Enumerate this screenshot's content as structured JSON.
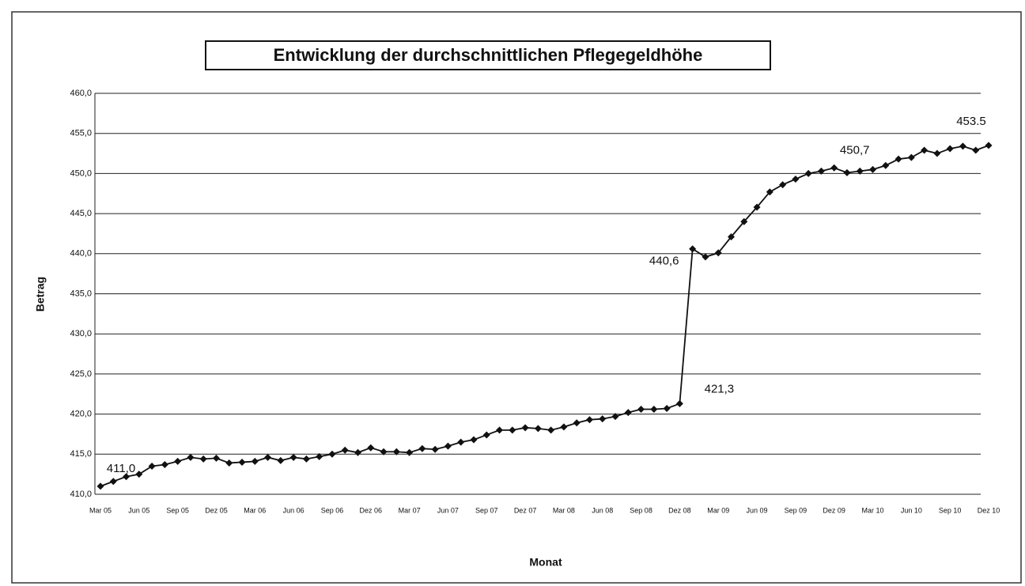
{
  "chart_data": {
    "type": "line",
    "title": "Entwicklung der durchschnittlichen Pflegegeldhöhe",
    "x_label": "Monat",
    "y_label": "Betrag",
    "categories": [
      "Mar 05",
      null,
      null,
      "Jun 05",
      null,
      null,
      "Sep 05",
      null,
      null,
      "Dez 05",
      null,
      null,
      "Mar 06",
      null,
      null,
      "Jun 06",
      null,
      null,
      "Sep 06",
      null,
      null,
      "Dez 06",
      null,
      null,
      "Mar 07",
      null,
      null,
      "Jun 07",
      null,
      null,
      "Sep 07",
      null,
      null,
      "Dez 07",
      null,
      null,
      "Mar 08",
      null,
      null,
      "Jun 08",
      null,
      null,
      "Sep 08",
      null,
      null,
      "Dez 08",
      null,
      null,
      "Mar 09",
      null,
      null,
      "Jun 09",
      null,
      null,
      "Sep 09",
      null,
      null,
      "Dez 09",
      null,
      null,
      "Mar 10",
      null,
      null,
      "Jun 10",
      null,
      null,
      "Sep 10",
      null,
      null,
      "Dez 10"
    ],
    "series": [
      {
        "name": "Betrag",
        "color": "#111111",
        "values": [
          411.0,
          411.6,
          412.2,
          412.5,
          413.5,
          413.7,
          414.1,
          414.6,
          414.4,
          414.5,
          413.9,
          414.0,
          414.1,
          414.6,
          414.2,
          414.6,
          414.4,
          414.7,
          415.0,
          415.5,
          415.2,
          415.8,
          415.3,
          415.3,
          415.2,
          415.7,
          415.6,
          416.0,
          416.5,
          416.8,
          417.4,
          418.0,
          418.0,
          418.3,
          418.2,
          418.0,
          418.4,
          418.9,
          419.3,
          419.4,
          419.7,
          420.2,
          420.6,
          420.6,
          420.7,
          421.3,
          440.6,
          439.6,
          440.1,
          442.1,
          444.0,
          445.8,
          447.7,
          448.6,
          449.3,
          450.0,
          450.3,
          450.7,
          450.1,
          450.3,
          450.5,
          451.0,
          451.8,
          452.0,
          452.9,
          452.5,
          453.1,
          453.4,
          452.9,
          453.5
        ],
        "value_labels": [
          "411,0",
          null,
          null,
          null,
          null,
          null,
          null,
          null,
          null,
          null,
          null,
          null,
          null,
          null,
          null,
          null,
          null,
          null,
          null,
          null,
          null,
          null,
          null,
          null,
          null,
          null,
          null,
          null,
          null,
          null,
          null,
          null,
          null,
          null,
          null,
          null,
          null,
          null,
          null,
          null,
          null,
          null,
          null,
          null,
          null,
          "421,3",
          "440,6",
          null,
          null,
          null,
          null,
          null,
          null,
          null,
          null,
          null,
          null,
          "450,7",
          null,
          null,
          null,
          null,
          null,
          null,
          null,
          null,
          null,
          null,
          null,
          "453.5"
        ]
      }
    ],
    "ylim": [
      410,
      460
    ],
    "yticks": [
      {
        "value": 410,
        "label": "410,0"
      },
      {
        "value": 415,
        "label": "415,0"
      },
      {
        "value": 420,
        "label": "420,0"
      },
      {
        "value": 425,
        "label": "425,0"
      },
      {
        "value": 430,
        "label": "430,0"
      },
      {
        "value": 435,
        "label": "435,0"
      },
      {
        "value": 440,
        "label": "440,0"
      },
      {
        "value": 445,
        "label": "445,0"
      },
      {
        "value": 450,
        "label": "450,0"
      },
      {
        "value": 455,
        "label": "455,0"
      },
      {
        "value": 460,
        "label": "460,0"
      }
    ],
    "grid": true
  }
}
